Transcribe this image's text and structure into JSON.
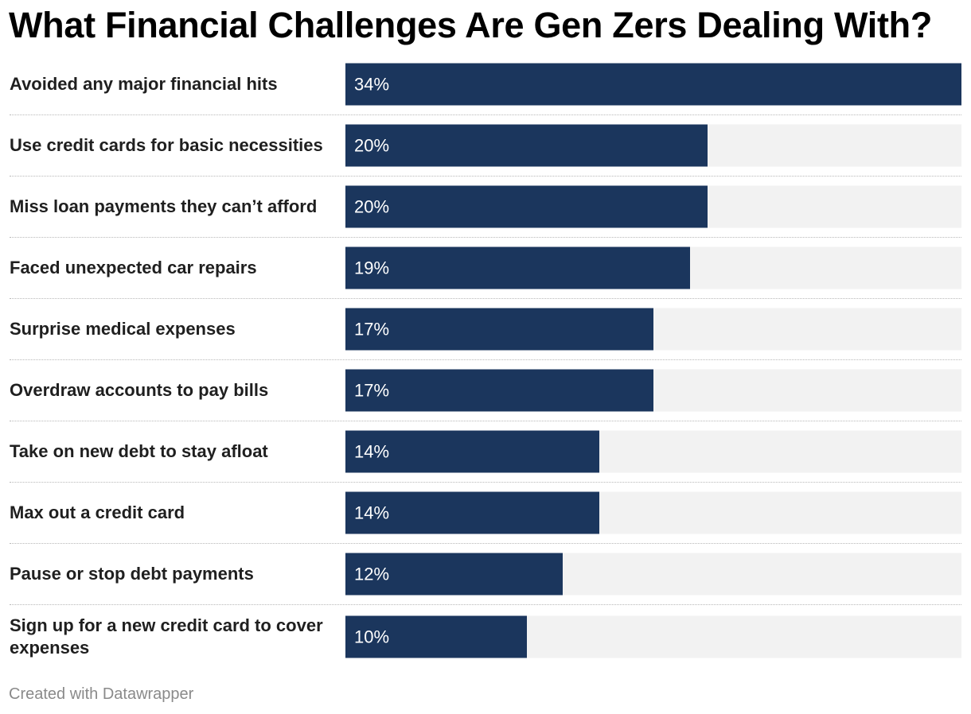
{
  "chart_data": {
    "type": "bar",
    "orientation": "horizontal",
    "title": "What Financial Challenges Are Gen Zers Dealing With?",
    "categories": [
      "Avoided any major financial hits",
      "Use credit cards for basic necessities",
      "Miss loan payments they can’t afford",
      "Faced unexpected car repairs",
      "Surprise medical expenses",
      "Overdraw accounts to pay bills",
      "Take on new debt to stay afloat",
      "Max out a credit card",
      "Pause or stop debt payments",
      "Sign up for a new credit card to cover expenses"
    ],
    "values": [
      34,
      20,
      20,
      19,
      17,
      17,
      14,
      14,
      12,
      10
    ],
    "value_labels": [
      "34%",
      "20%",
      "20%",
      "19%",
      "17%",
      "17%",
      "14%",
      "14%",
      "12%",
      "10%"
    ],
    "unit": "%",
    "xlim": [
      0,
      34
    ],
    "xlabel": "",
    "ylabel": "",
    "grid": false
  },
  "colors": {
    "bar": "#1b365d",
    "track": "#f2f2f2",
    "value_text": "#ffffff"
  },
  "footer": {
    "credit": "Created with Datawrapper"
  }
}
